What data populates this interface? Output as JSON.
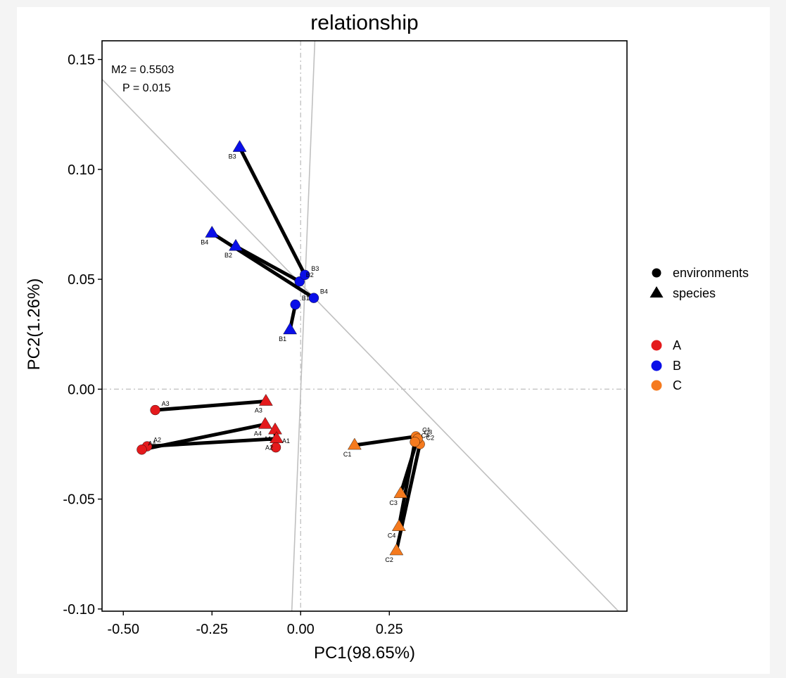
{
  "chart_data": {
    "type": "scatter",
    "title": "relationship",
    "xlabel": "PC1(98.65%)",
    "ylabel": "PC2(1.26%)",
    "xlim": [
      -0.56,
      0.92
    ],
    "ylim": [
      -0.101,
      0.1585
    ],
    "xticks": [
      -0.5,
      -0.25,
      0.0,
      0.25
    ],
    "xtick_labels": [
      "-0.50",
      "-0.25",
      "0.00",
      "0.25"
    ],
    "yticks": [
      -0.1,
      -0.05,
      0.0,
      0.05,
      0.1,
      0.15
    ],
    "ytick_labels": [
      "-0.10",
      "-0.05",
      "0.00",
      "0.05",
      "0.10",
      "0.15"
    ],
    "grid": false,
    "annotations": {
      "m2": "M2 = 0.5503",
      "p": "P = 0.015"
    },
    "reference_lines": {
      "rotation_line_1": {
        "x0": -0.56,
        "y0": 0.141,
        "x1": 0.905,
        "y1": -0.1025
      },
      "rotation_line_2": {
        "x0": -0.025,
        "y0": -0.101,
        "x1": 0.04,
        "y1": 0.1585
      }
    },
    "legend": {
      "placement": "right",
      "shapes": [
        {
          "label": "environments",
          "marker": "circle"
        },
        {
          "label": "species",
          "marker": "triangle"
        }
      ],
      "groups": [
        {
          "label": "A",
          "color": "#E41A1C"
        },
        {
          "label": "B",
          "color": "#0A0FE8"
        },
        {
          "label": "C",
          "color": "#F57A1E"
        }
      ]
    },
    "series": [
      {
        "group": "A",
        "color": "#E41A1C",
        "pairs": [
          {
            "label": "A1",
            "env": {
              "x": -0.07,
              "y": -0.0265
            },
            "species": {
              "x": -0.072,
              "y": -0.0185
            }
          },
          {
            "label": "A2",
            "env": {
              "x": -0.433,
              "y": -0.026
            },
            "species": {
              "x": -0.068,
              "y": -0.0225
            }
          },
          {
            "label": "A3",
            "env": {
              "x": -0.41,
              "y": -0.0095
            },
            "species": {
              "x": -0.098,
              "y": -0.0055
            }
          },
          {
            "label": "A4",
            "env": {
              "x": -0.448,
              "y": -0.0275
            },
            "species": {
              "x": -0.1,
              "y": -0.016
            }
          }
        ]
      },
      {
        "group": "B",
        "color": "#0A0FE8",
        "pairs": [
          {
            "label": "B1",
            "env": {
              "x": -0.015,
              "y": 0.0385
            },
            "species": {
              "x": -0.03,
              "y": 0.027
            }
          },
          {
            "label": "B2",
            "env": {
              "x": -0.003,
              "y": 0.049
            },
            "species": {
              "x": -0.183,
              "y": 0.065
            }
          },
          {
            "label": "B3",
            "env": {
              "x": 0.012,
              "y": 0.052
            },
            "species": {
              "x": -0.172,
              "y": 0.11
            }
          },
          {
            "label": "B4",
            "env": {
              "x": 0.037,
              "y": 0.0415
            },
            "species": {
              "x": -0.25,
              "y": 0.071
            }
          }
        ]
      },
      {
        "group": "C",
        "color": "#F57A1E",
        "pairs": [
          {
            "label": "C1",
            "env": {
              "x": 0.325,
              "y": -0.0215
            },
            "species": {
              "x": 0.152,
              "y": -0.0255
            }
          },
          {
            "label": "C2",
            "env": {
              "x": 0.336,
              "y": -0.025
            },
            "species": {
              "x": 0.27,
              "y": -0.0735
            }
          },
          {
            "label": "C3",
            "env": {
              "x": 0.33,
              "y": -0.0225
            },
            "species": {
              "x": 0.282,
              "y": -0.0475
            }
          },
          {
            "label": "C4",
            "env": {
              "x": 0.322,
              "y": -0.024
            },
            "species": {
              "x": 0.277,
              "y": -0.0625
            }
          }
        ]
      }
    ]
  }
}
